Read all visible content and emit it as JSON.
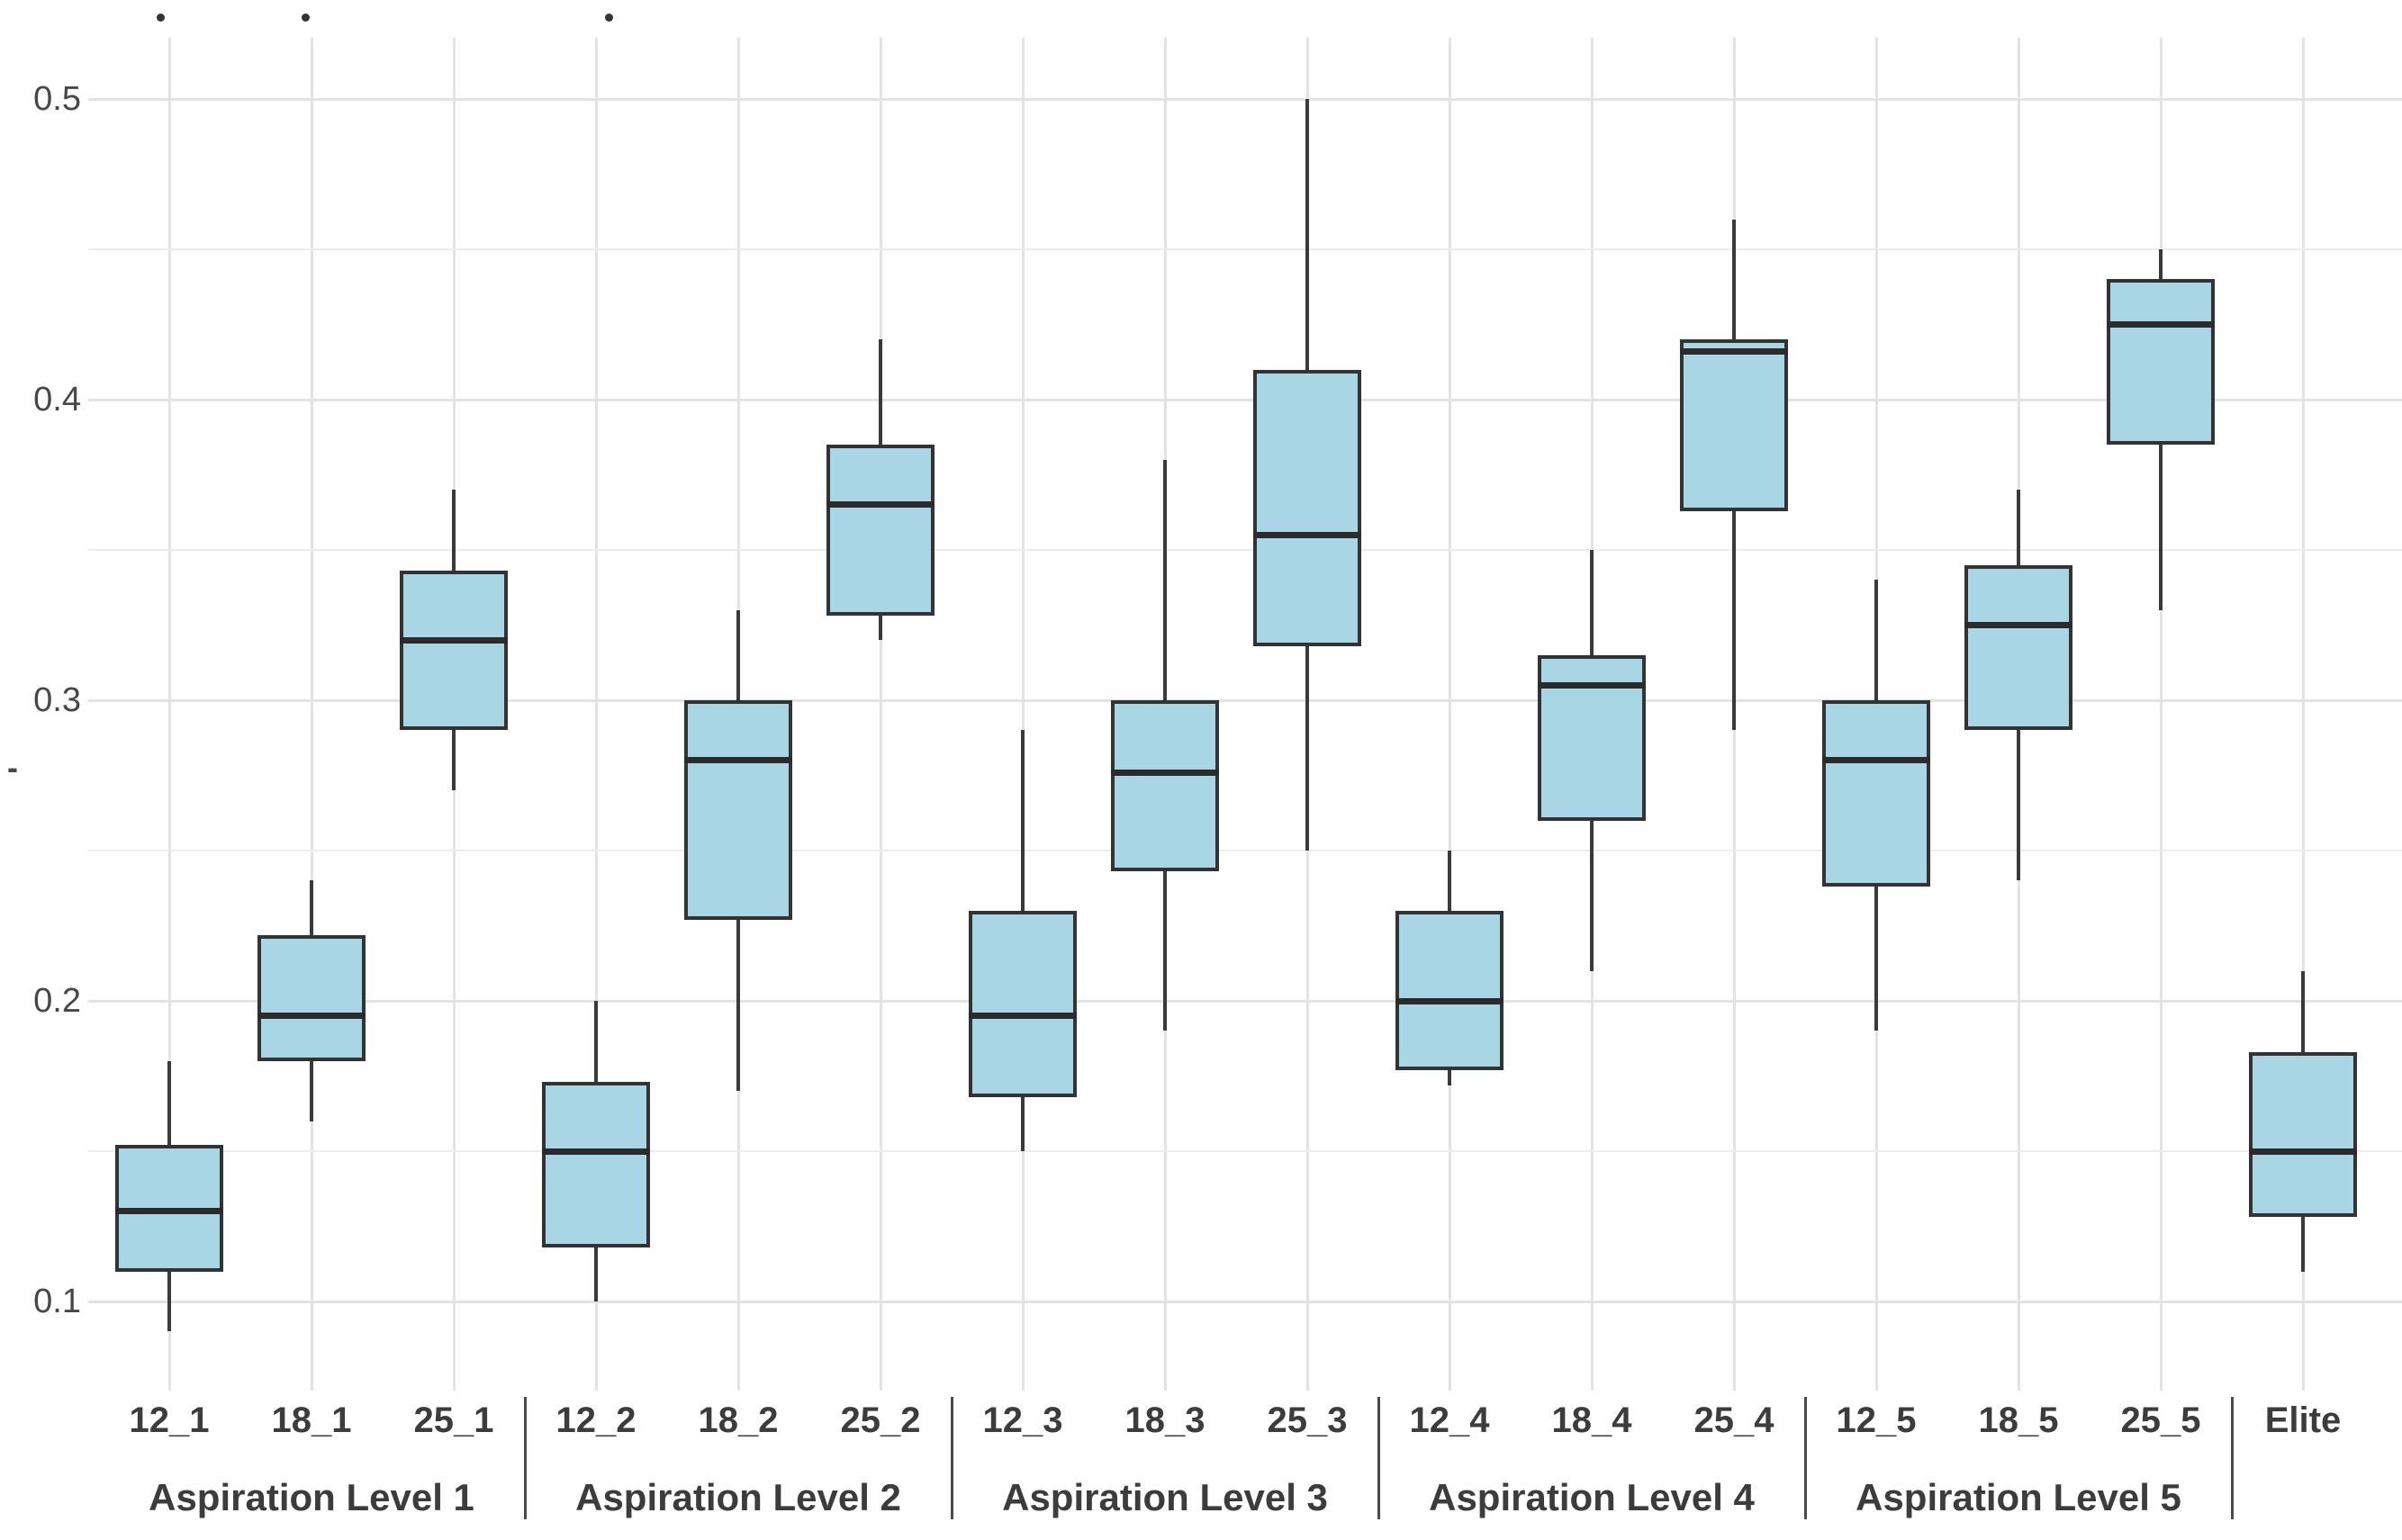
{
  "chart_data": {
    "type": "box",
    "title": "",
    "xlabel": "",
    "ylabel": "-",
    "ylim": [
      0.07,
      0.53
    ],
    "yticks": [
      0.5,
      0.4,
      0.3,
      0.2,
      0.1
    ],
    "ytick_labels": [
      "0.5",
      "0.4",
      "0.3",
      "0.2",
      "0.1"
    ],
    "minor_gridlines": [
      0.45,
      0.35,
      0.25,
      0.15
    ],
    "grid": true,
    "legend_position": "none",
    "groups": [
      {
        "label": "Aspiration Level 1",
        "categories": [
          "12_1",
          "18_1",
          "25_1"
        ]
      },
      {
        "label": "Aspiration Level 2",
        "categories": [
          "12_2",
          "18_2",
          "25_2"
        ]
      },
      {
        "label": "Aspiration Level 3",
        "categories": [
          "12_3",
          "18_3",
          "25_3"
        ]
      },
      {
        "label": "Aspiration Level 4",
        "categories": [
          "12_4",
          "18_4",
          "25_4"
        ]
      },
      {
        "label": "Aspiration Level 5",
        "categories": [
          "12_5",
          "18_5",
          "25_5"
        ]
      },
      {
        "label": "",
        "categories": [
          "Elite"
        ]
      }
    ],
    "series": [
      {
        "category": "12_1",
        "group": "Aspiration Level 1",
        "min": 0.09,
        "q1": 0.11,
        "median": 0.13,
        "q3": 0.152,
        "max": 0.18
      },
      {
        "category": "18_1",
        "group": "Aspiration Level 1",
        "min": 0.16,
        "q1": 0.18,
        "median": 0.195,
        "q3": 0.222,
        "max": 0.24
      },
      {
        "category": "25_1",
        "group": "Aspiration Level 1",
        "min": 0.27,
        "q1": 0.29,
        "median": 0.32,
        "q3": 0.343,
        "max": 0.37
      },
      {
        "category": "12_2",
        "group": "Aspiration Level 2",
        "min": 0.1,
        "q1": 0.118,
        "median": 0.15,
        "q3": 0.173,
        "max": 0.2
      },
      {
        "category": "18_2",
        "group": "Aspiration Level 2",
        "min": 0.17,
        "q1": 0.227,
        "median": 0.28,
        "q3": 0.3,
        "max": 0.33
      },
      {
        "category": "25_2",
        "group": "Aspiration Level 2",
        "min": 0.32,
        "q1": 0.328,
        "median": 0.365,
        "q3": 0.385,
        "max": 0.42
      },
      {
        "category": "12_3",
        "group": "Aspiration Level 3",
        "min": 0.15,
        "q1": 0.168,
        "median": 0.195,
        "q3": 0.23,
        "max": 0.29
      },
      {
        "category": "18_3",
        "group": "Aspiration Level 3",
        "min": 0.19,
        "q1": 0.243,
        "median": 0.276,
        "q3": 0.3,
        "max": 0.38
      },
      {
        "category": "25_3",
        "group": "Aspiration Level 3",
        "min": 0.25,
        "q1": 0.318,
        "median": 0.355,
        "q3": 0.41,
        "max": 0.5
      },
      {
        "category": "12_4",
        "group": "Aspiration Level 4",
        "min": 0.172,
        "q1": 0.177,
        "median": 0.2,
        "q3": 0.23,
        "max": 0.25
      },
      {
        "category": "18_4",
        "group": "Aspiration Level 4",
        "min": 0.21,
        "q1": 0.26,
        "median": 0.305,
        "q3": 0.315,
        "max": 0.35
      },
      {
        "category": "25_4",
        "group": "Aspiration Level 4",
        "min": 0.29,
        "q1": 0.363,
        "median": 0.416,
        "q3": 0.42,
        "max": 0.46
      },
      {
        "category": "12_5",
        "group": "Aspiration Level 5",
        "min": 0.19,
        "q1": 0.238,
        "median": 0.28,
        "q3": 0.3,
        "max": 0.34
      },
      {
        "category": "18_5",
        "group": "Aspiration Level 5",
        "min": 0.24,
        "q1": 0.29,
        "median": 0.325,
        "q3": 0.345,
        "max": 0.37
      },
      {
        "category": "25_5",
        "group": "Aspiration Level 5",
        "min": 0.33,
        "q1": 0.385,
        "median": 0.425,
        "q3": 0.44,
        "max": 0.45
      },
      {
        "category": "Elite",
        "group": "",
        "min": 0.11,
        "q1": 0.128,
        "median": 0.15,
        "q3": 0.183,
        "max": 0.21
      }
    ],
    "outliers": [
      {
        "category": "12_1",
        "value": 0.527,
        "x_offset": -10
      },
      {
        "category": "18_1",
        "value": 0.527,
        "x_offset": -7
      },
      {
        "category": "12_2",
        "value": 0.527,
        "x_offset": 14
      }
    ]
  },
  "colors": {
    "background": "#FFFFFF",
    "box_fill": "#A9D6E5",
    "box_border": "#333333",
    "median": "#2B2B2B",
    "whisker": "#3A3A3A",
    "outlier": "#333333",
    "grid_major": "#E3E3E3",
    "grid_minor": "#ECECEC",
    "axis_text": "#474747",
    "label_text": "#3C3C3C",
    "divider": "#4A4A4A"
  }
}
